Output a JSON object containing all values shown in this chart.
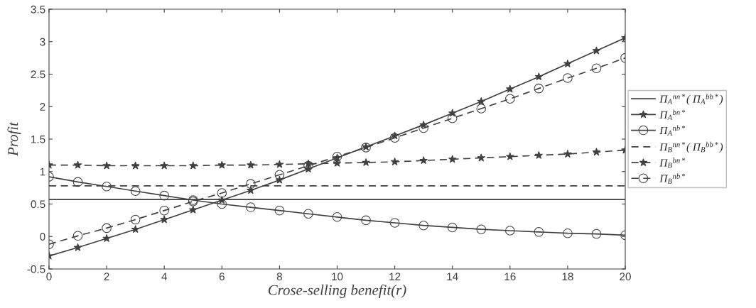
{
  "chart_data": {
    "type": "line",
    "xlabel": "Crose-selling benefit(r)",
    "ylabel": "Profit",
    "x": [
      0,
      1,
      2,
      3,
      4,
      5,
      6,
      7,
      8,
      9,
      10,
      11,
      12,
      13,
      14,
      15,
      16,
      17,
      18,
      19,
      20
    ],
    "xlim": [
      0,
      20
    ],
    "xticks": [
      0,
      2,
      4,
      6,
      8,
      10,
      12,
      14,
      16,
      18,
      20
    ],
    "ylim": [
      -0.5,
      3.5
    ],
    "yticks": [
      -0.5,
      0,
      0.5,
      1,
      1.5,
      2,
      2.5,
      3,
      3.5
    ],
    "grid": false,
    "legend": "right",
    "series": [
      {
        "name": "Π$_{A}$$^{nn*}$( Π$_{A}$$^{bb*}$)",
        "color": "#404040",
        "marker": "none",
        "line_style": "solid",
        "values": [
          0.57,
          0.57,
          0.57,
          0.57,
          0.57,
          0.57,
          0.57,
          0.57,
          0.57,
          0.57,
          0.57,
          0.57,
          0.57,
          0.57,
          0.57,
          0.57,
          0.57,
          0.57,
          0.57,
          0.57,
          0.57
        ]
      },
      {
        "name": "Π$_{A}$$^{bn*}$",
        "color": "#404040",
        "marker": "star",
        "line_style": "solid",
        "values": [
          -0.3,
          -0.17,
          -0.03,
          0.11,
          0.26,
          0.41,
          0.56,
          0.71,
          0.87,
          1.04,
          1.21,
          1.38,
          1.55,
          1.72,
          1.9,
          2.08,
          2.27,
          2.46,
          2.66,
          2.86,
          3.06
        ]
      },
      {
        "name": "Π$_{A}$$^{nb*}$",
        "color": "#404040",
        "marker": "circle",
        "line_style": "solid",
        "values": [
          0.92,
          0.84,
          0.77,
          0.7,
          0.63,
          0.56,
          0.5,
          0.45,
          0.4,
          0.35,
          0.3,
          0.25,
          0.21,
          0.17,
          0.14,
          0.11,
          0.09,
          0.07,
          0.05,
          0.04,
          0.02
        ]
      },
      {
        "name": "Π$_{B}$$^{nn*}$( Π$_{B}$$^{bb*}$)",
        "color": "#404040",
        "marker": "none",
        "line_style": "dashed",
        "values": [
          0.78,
          0.78,
          0.78,
          0.78,
          0.78,
          0.78,
          0.78,
          0.78,
          0.78,
          0.78,
          0.78,
          0.78,
          0.78,
          0.78,
          0.78,
          0.78,
          0.78,
          0.78,
          0.78,
          0.78,
          0.78
        ]
      },
      {
        "name": "Π$_{B}$$^{bn*}$",
        "color": "#404040",
        "marker": "star",
        "line_style": "dashed",
        "values": [
          1.1,
          1.1,
          1.09,
          1.09,
          1.09,
          1.09,
          1.1,
          1.1,
          1.11,
          1.12,
          1.13,
          1.14,
          1.15,
          1.17,
          1.19,
          1.21,
          1.23,
          1.25,
          1.27,
          1.3,
          1.33
        ]
      },
      {
        "name": "Π$_{B}$$^{nb*}$",
        "color": "#404040",
        "marker": "circle",
        "line_style": "dashed",
        "values": [
          -0.12,
          0.01,
          0.13,
          0.26,
          0.4,
          0.54,
          0.67,
          0.81,
          0.95,
          1.09,
          1.23,
          1.37,
          1.52,
          1.67,
          1.82,
          1.97,
          2.12,
          2.28,
          2.44,
          2.59,
          2.75
        ]
      }
    ]
  }
}
